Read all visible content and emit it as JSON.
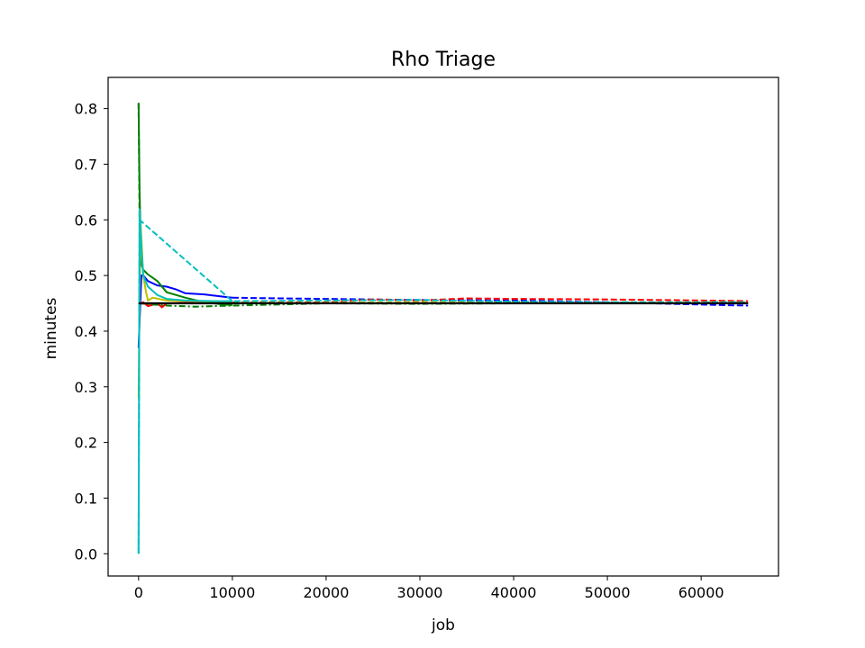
{
  "chart_data": {
    "type": "line",
    "title": "Rho Triage",
    "xlabel": "job",
    "ylabel": "minutes",
    "xlim": [
      -3250,
      68250
    ],
    "ylim": [
      -0.04,
      0.856
    ],
    "xticks": [
      0,
      10000,
      20000,
      30000,
      40000,
      50000,
      60000
    ],
    "xtick_labels": [
      "0",
      "10000",
      "20000",
      "30000",
      "40000",
      "50000",
      "60000"
    ],
    "yticks": [
      0.0,
      0.1,
      0.2,
      0.3,
      0.4,
      0.5,
      0.6,
      0.7,
      0.8
    ],
    "ytick_labels": [
      "0.0",
      "0.1",
      "0.2",
      "0.3",
      "0.4",
      "0.5",
      "0.6",
      "0.7",
      "0.8"
    ],
    "grid": false,
    "legend": "none",
    "series": [
      {
        "color": "#0000ff",
        "style": "solid",
        "x": [
          0,
          300,
          500,
          1000,
          2000,
          3000,
          4000,
          5000,
          7000,
          9000,
          10000
        ],
        "y": [
          0.37,
          0.5,
          0.5,
          0.49,
          0.482,
          0.48,
          0.475,
          0.468,
          0.466,
          0.462,
          0.46
        ]
      },
      {
        "color": "#0000ff",
        "style": "dashed",
        "x": [
          10000,
          15000,
          20000,
          25000,
          30000,
          40000,
          50000,
          57000,
          62000,
          65000
        ],
        "y": [
          0.46,
          0.459,
          0.458,
          0.457,
          0.456,
          0.455,
          0.452,
          0.449,
          0.447,
          0.446
        ]
      },
      {
        "color": "#ff0000",
        "style": "solid",
        "x": [
          0,
          500,
          1000,
          2000,
          2500,
          3000,
          5000,
          10000
        ],
        "y": [
          0.448,
          0.452,
          0.445,
          0.45,
          0.443,
          0.45,
          0.451,
          0.452
        ]
      },
      {
        "color": "#ff0000",
        "style": "dashed",
        "x": [
          10000,
          20000,
          25000,
          30000,
          35000,
          40000,
          50000,
          60000,
          65000
        ],
        "y": [
          0.452,
          0.452,
          0.457,
          0.455,
          0.459,
          0.458,
          0.457,
          0.455,
          0.454
        ]
      },
      {
        "color": "#008000",
        "style": "solid",
        "x": [
          0,
          100,
          300,
          500,
          1000,
          2000,
          3000,
          5000,
          7000,
          9000,
          10000
        ],
        "y": [
          0.81,
          0.65,
          0.52,
          0.51,
          0.502,
          0.49,
          0.47,
          0.46,
          0.452,
          0.448,
          0.447
        ]
      },
      {
        "color": "#008000",
        "style": "dashed",
        "x": [
          0,
          100
        ],
        "y": [
          0.81,
          0.6
        ]
      },
      {
        "color": "#008000",
        "style": "dashdot",
        "x": [
          0,
          3000,
          6000,
          10000,
          15000,
          20000,
          30000,
          40000,
          50000,
          65000
        ],
        "y": [
          0.45,
          0.446,
          0.444,
          0.446,
          0.448,
          0.45,
          0.449,
          0.45,
          0.451,
          0.451
        ]
      },
      {
        "color": "#bfbf00",
        "style": "solid",
        "x": [
          0,
          200,
          500,
          800,
          1000,
          1500,
          3000,
          10000
        ],
        "y": [
          0.28,
          0.6,
          0.5,
          0.47,
          0.455,
          0.46,
          0.455,
          0.452
        ]
      },
      {
        "color": "#bfbf00",
        "style": "dashed",
        "x": [
          10000,
          20000,
          30000,
          40000,
          50000,
          65000
        ],
        "y": [
          0.451,
          0.451,
          0.452,
          0.452,
          0.451,
          0.451
        ]
      },
      {
        "color": "#00bfbf",
        "style": "solid",
        "x": [
          0,
          100,
          300,
          500,
          1000,
          2000,
          3000,
          5000,
          8000,
          10000
        ],
        "y": [
          0.0,
          0.62,
          0.55,
          0.5,
          0.48,
          0.465,
          0.458,
          0.455,
          0.454,
          0.454
        ]
      },
      {
        "color": "#00bfbf",
        "style": "dashed",
        "x": [
          0,
          100,
          10000,
          20000,
          30000,
          33000,
          40000,
          50000,
          65000
        ],
        "y": [
          0.0,
          0.6,
          0.454,
          0.455,
          0.456,
          0.455,
          0.453,
          0.452,
          0.452
        ]
      },
      {
        "color": "#000000",
        "style": "solid",
        "x": [
          0,
          65000
        ],
        "y": [
          0.45,
          0.45
        ]
      }
    ]
  }
}
